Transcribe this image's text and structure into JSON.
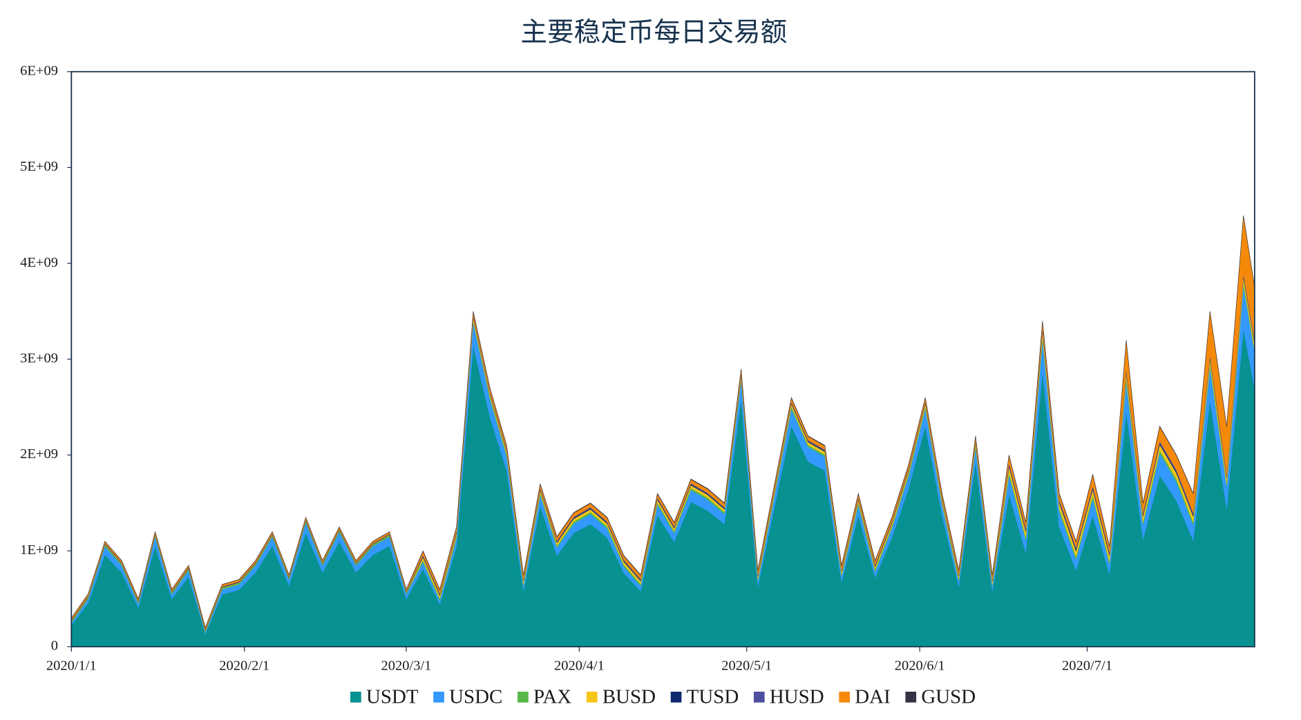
{
  "chart_data": {
    "type": "stacked_area",
    "title": "主要稳定币每日交易额",
    "x": [
      "2020/1/1",
      "2020/1/4",
      "2020/1/7",
      "2020/1/10",
      "2020/1/13",
      "2020/1/16",
      "2020/1/19",
      "2020/1/22",
      "2020/1/25",
      "2020/1/28",
      "2020/1/31",
      "2020/2/3",
      "2020/2/6",
      "2020/2/9",
      "2020/2/12",
      "2020/2/15",
      "2020/2/18",
      "2020/2/21",
      "2020/2/24",
      "2020/2/27",
      "2020/3/1",
      "2020/3/4",
      "2020/3/7",
      "2020/3/10",
      "2020/3/13",
      "2020/3/16",
      "2020/3/19",
      "2020/3/22",
      "2020/3/25",
      "2020/3/28",
      "2020/3/31",
      "2020/4/3",
      "2020/4/6",
      "2020/4/9",
      "2020/4/12",
      "2020/4/15",
      "2020/4/18",
      "2020/4/21",
      "2020/4/24",
      "2020/4/27",
      "2020/4/30",
      "2020/5/3",
      "2020/5/6",
      "2020/5/9",
      "2020/5/12",
      "2020/5/15",
      "2020/5/18",
      "2020/5/21",
      "2020/5/24",
      "2020/5/27",
      "2020/5/30",
      "2020/6/2",
      "2020/6/5",
      "2020/6/8",
      "2020/6/11",
      "2020/6/14",
      "2020/6/17",
      "2020/6/20",
      "2020/6/23",
      "2020/6/26",
      "2020/6/29",
      "2020/7/2",
      "2020/7/5",
      "2020/7/8",
      "2020/7/11",
      "2020/7/14",
      "2020/7/17",
      "2020/7/20",
      "2020/7/23",
      "2020/7/26",
      "2020/7/29",
      "2020/7/31"
    ],
    "xlim": [
      "2020/1/1",
      "2020/7/31"
    ],
    "xticks": [
      "2020/1/1",
      "2020/2/1",
      "2020/3/1",
      "2020/4/1",
      "2020/5/1",
      "2020/6/1",
      "2020/7/1"
    ],
    "ylim": [
      0,
      6000000000
    ],
    "yticks": [
      0,
      {
        "value": 1000000000,
        "label": "1E+09"
      },
      {
        "value": 2000000000,
        "label": "2E+09"
      },
      {
        "value": 3000000000,
        "label": "3E+09"
      },
      {
        "value": 4000000000,
        "label": "4E+09"
      },
      {
        "value": 5000000000,
        "label": "5E+09"
      },
      {
        "value": 6000000000,
        "label": "6E+09"
      }
    ],
    "legend": "bottom",
    "series": [
      {
        "name": "USDT",
        "color": "#079191",
        "values": [
          224000000.0,
          454000000.0,
          960000000.0,
          776000000.0,
          408000000.0,
          1052000000.0,
          500000000.0,
          730000000.0,
          132000000.0,
          546000000.0,
          592000000.0,
          776000000.0,
          1052000000.0,
          638000000.0,
          1190000000.0,
          776000000.0,
          1098000000.0,
          776000000.0,
          960000000.0,
          1052000000.0,
          500000000.0,
          815000000.0,
          443000000.0,
          1047000000.0,
          3140000000.0,
          2396000000.0,
          1838000000.0,
          582000000.0,
          1466000000.0,
          954000000.0,
          1187000000.0,
          1280000000.0,
          1140000000.0,
          768000000.0,
          582000000.0,
          1373000000.0,
          1094000000.0,
          1512000000.0,
          1419000000.0,
          1280000000.0,
          2582000000.0,
          629000000.0,
          1466000000.0,
          2303000000.0,
          1931000000.0,
          1838000000.0,
          675000000.0,
          1373000000.0,
          722000000.0,
          1140000000.0,
          1652000000.0,
          2303000000.0,
          1373000000.0,
          629000000.0,
          1931000000.0,
          582000000.0,
          1590000000.0,
          980000000.0,
          2870000000.0,
          1250000000.0,
          800000000.0,
          1370000000.0,
          755000000.0,
          2450000000.0,
          1120000000.0,
          1790000000.0,
          1520000000.0,
          1110000000.0,
          2570000000.0,
          1440000000.0,
          3320000000.0,
          2695000000.0
        ]
      },
      {
        "name": "USDC",
        "color": "#3399ff",
        "values": [
          24000000.0,
          44000000.0,
          88000000.0,
          72000000.0,
          40000000.0,
          96000000.0,
          48000000.0,
          68000000.0,
          16000000.0,
          52000000.0,
          56000000.0,
          72000000.0,
          96000000.0,
          60000000.0,
          108000000.0,
          72000000.0,
          100000000.0,
          72000000.0,
          88000000.0,
          96000000.0,
          48000000.0,
          70000000.0,
          42000000.0,
          88000000.0,
          245000000.0,
          189000000.0,
          147000000.0,
          53000000.0,
          119000000.0,
          81000000.0,
          98000000.0,
          105000000.0,
          95000000.0,
          67000000.0,
          53000000.0,
          112000000.0,
          91000000.0,
          123000000.0,
          116000000.0,
          105000000.0,
          203000000.0,
          56000000.0,
          119000000.0,
          182000000.0,
          154000000.0,
          147000000.0,
          60000000.0,
          112000000.0,
          63000000.0,
          95000000.0,
          133000000.0,
          182000000.0,
          112000000.0,
          56000000.0,
          154000000.0,
          53000000.0,
          200000000.0,
          130000000.0,
          340000000.0,
          160000000.0,
          110000000.0,
          180000000.0,
          105000000.0,
          320000000.0,
          150000000.0,
          230000000.0,
          200000000.0,
          160000000.0,
          350000000.0,
          230000000.0,
          450000000.0,
          375000000.0
        ]
      },
      {
        "name": "PAX",
        "color": "#55b848",
        "values": [
          15000000.0,
          15000000.0,
          15000000.0,
          15000000.0,
          15000000.0,
          15000000.0,
          15000000.0,
          15000000.0,
          15000000.0,
          15000000.0,
          15000000.0,
          15000000.0,
          15000000.0,
          15000000.0,
          15000000.0,
          15000000.0,
          15000000.0,
          15000000.0,
          15000000.0,
          15000000.0,
          15000000.0,
          20000000.0,
          20000000.0,
          20000000.0,
          20000000.0,
          20000000.0,
          20000000.0,
          20000000.0,
          20000000.0,
          20000000.0,
          20000000.0,
          20000000.0,
          20000000.0,
          20000000.0,
          20000000.0,
          20000000.0,
          20000000.0,
          20000000.0,
          20000000.0,
          20000000.0,
          20000000.0,
          20000000.0,
          20000000.0,
          20000000.0,
          20000000.0,
          20000000.0,
          20000000.0,
          20000000.0,
          20000000.0,
          20000000.0,
          20000000.0,
          20000000.0,
          20000000.0,
          20000000.0,
          20000000.0,
          20000000.0,
          30000000.0,
          30000000.0,
          30000000.0,
          30000000.0,
          30000000.0,
          30000000.0,
          30000000.0,
          30000000.0,
          30000000.0,
          30000000.0,
          30000000.0,
          30000000.0,
          30000000.0,
          30000000.0,
          30000000.0,
          30000000.0
        ]
      },
      {
        "name": "BUSD",
        "color": "#f5c518",
        "values": [
          5000000.0,
          5000000.0,
          5000000.0,
          5000000.0,
          5000000.0,
          5000000.0,
          5000000.0,
          5000000.0,
          5000000.0,
          5000000.0,
          5000000.0,
          5000000.0,
          5000000.0,
          5000000.0,
          5000000.0,
          5000000.0,
          5000000.0,
          5000000.0,
          5000000.0,
          5000000.0,
          5000000.0,
          30000000.0,
          30000000.0,
          30000000.0,
          30000000.0,
          30000000.0,
          30000000.0,
          30000000.0,
          30000000.0,
          30000000.0,
          30000000.0,
          30000000.0,
          30000000.0,
          30000000.0,
          30000000.0,
          30000000.0,
          30000000.0,
          30000000.0,
          30000000.0,
          30000000.0,
          30000000.0,
          30000000.0,
          30000000.0,
          30000000.0,
          30000000.0,
          30000000.0,
          30000000.0,
          30000000.0,
          30000000.0,
          30000000.0,
          30000000.0,
          30000000.0,
          30000000.0,
          30000000.0,
          30000000.0,
          30000000.0,
          60000000.0,
          60000000.0,
          60000000.0,
          60000000.0,
          60000000.0,
          60000000.0,
          60000000.0,
          60000000.0,
          60000000.0,
          60000000.0,
          60000000.0,
          60000000.0,
          60000000.0,
          60000000.0,
          60000000.0,
          60000000.0
        ]
      },
      {
        "name": "TUSD",
        "color": "#0f2a6e",
        "values": [
          5000000.0,
          5000000.0,
          5000000.0,
          5000000.0,
          5000000.0,
          5000000.0,
          5000000.0,
          5000000.0,
          5000000.0,
          5000000.0,
          5000000.0,
          5000000.0,
          5000000.0,
          5000000.0,
          5000000.0,
          5000000.0,
          5000000.0,
          5000000.0,
          5000000.0,
          5000000.0,
          5000000.0,
          10000000.0,
          10000000.0,
          10000000.0,
          10000000.0,
          10000000.0,
          10000000.0,
          10000000.0,
          10000000.0,
          10000000.0,
          10000000.0,
          10000000.0,
          10000000.0,
          10000000.0,
          10000000.0,
          10000000.0,
          10000000.0,
          10000000.0,
          10000000.0,
          10000000.0,
          10000000.0,
          10000000.0,
          10000000.0,
          10000000.0,
          10000000.0,
          10000000.0,
          10000000.0,
          10000000.0,
          10000000.0,
          10000000.0,
          10000000.0,
          10000000.0,
          10000000.0,
          10000000.0,
          10000000.0,
          10000000.0,
          15000000.0,
          15000000.0,
          15000000.0,
          15000000.0,
          15000000.0,
          15000000.0,
          15000000.0,
          15000000.0,
          15000000.0,
          15000000.0,
          15000000.0,
          15000000.0,
          15000000.0,
          15000000.0,
          15000000.0,
          15000000.0
        ]
      },
      {
        "name": "HUSD",
        "color": "#5050a0",
        "values": [
          5000000.0,
          5000000.0,
          5000000.0,
          5000000.0,
          5000000.0,
          5000000.0,
          5000000.0,
          5000000.0,
          5000000.0,
          5000000.0,
          5000000.0,
          5000000.0,
          5000000.0,
          5000000.0,
          5000000.0,
          5000000.0,
          5000000.0,
          5000000.0,
          5000000.0,
          5000000.0,
          5000000.0,
          10000000.0,
          10000000.0,
          10000000.0,
          10000000.0,
          10000000.0,
          10000000.0,
          10000000.0,
          10000000.0,
          10000000.0,
          10000000.0,
          10000000.0,
          10000000.0,
          10000000.0,
          10000000.0,
          10000000.0,
          10000000.0,
          10000000.0,
          10000000.0,
          10000000.0,
          10000000.0,
          10000000.0,
          10000000.0,
          10000000.0,
          10000000.0,
          10000000.0,
          10000000.0,
          10000000.0,
          10000000.0,
          10000000.0,
          10000000.0,
          10000000.0,
          10000000.0,
          10000000.0,
          10000000.0,
          10000000.0,
          20000000.0,
          20000000.0,
          20000000.0,
          20000000.0,
          20000000.0,
          20000000.0,
          20000000.0,
          20000000.0,
          20000000.0,
          20000000.0,
          20000000.0,
          20000000.0,
          20000000.0,
          20000000.0,
          20000000.0,
          20000000.0
        ]
      },
      {
        "name": "DAI",
        "color": "#f58a0a",
        "values": [
          20000000.0,
          20000000.0,
          20000000.0,
          20000000.0,
          20000000.0,
          20000000.0,
          20000000.0,
          20000000.0,
          20000000.0,
          20000000.0,
          20000000.0,
          20000000.0,
          20000000.0,
          20000000.0,
          20000000.0,
          20000000.0,
          20000000.0,
          20000000.0,
          20000000.0,
          20000000.0,
          20000000.0,
          40000000.0,
          40000000.0,
          40000000.0,
          40000000.0,
          40000000.0,
          40000000.0,
          40000000.0,
          40000000.0,
          40000000.0,
          40000000.0,
          40000000.0,
          40000000.0,
          40000000.0,
          40000000.0,
          40000000.0,
          40000000.0,
          40000000.0,
          40000000.0,
          40000000.0,
          40000000.0,
          40000000.0,
          40000000.0,
          40000000.0,
          40000000.0,
          40000000.0,
          40000000.0,
          40000000.0,
          40000000.0,
          40000000.0,
          40000000.0,
          40000000.0,
          40000000.0,
          40000000.0,
          40000000.0,
          40000000.0,
          80000000.0,
          60000000.0,
          60000000.0,
          60000000.0,
          60000000.0,
          120000000.0,
          60000000.0,
          300000000.0,
          100000000.0,
          150000000.0,
          150000000.0,
          200000000.0,
          450000000.0,
          500000000.0,
          600000000.0,
          550000000.0
        ]
      },
      {
        "name": "GUSD",
        "color": "#333344",
        "values": [
          2000000.0,
          2000000.0,
          2000000.0,
          2000000.0,
          2000000.0,
          2000000.0,
          2000000.0,
          2000000.0,
          2000000.0,
          2000000.0,
          2000000.0,
          2000000.0,
          2000000.0,
          2000000.0,
          2000000.0,
          2000000.0,
          2000000.0,
          2000000.0,
          2000000.0,
          2000000.0,
          2000000.0,
          5000000.0,
          5000000.0,
          5000000.0,
          5000000.0,
          5000000.0,
          5000000.0,
          5000000.0,
          5000000.0,
          5000000.0,
          5000000.0,
          5000000.0,
          5000000.0,
          5000000.0,
          5000000.0,
          5000000.0,
          5000000.0,
          5000000.0,
          5000000.0,
          5000000.0,
          5000000.0,
          5000000.0,
          5000000.0,
          5000000.0,
          5000000.0,
          5000000.0,
          5000000.0,
          5000000.0,
          5000000.0,
          5000000.0,
          5000000.0,
          5000000.0,
          5000000.0,
          5000000.0,
          5000000.0,
          5000000.0,
          5000000.0,
          5000000.0,
          5000000.0,
          5000000.0,
          5000000.0,
          5000000.0,
          5000000.0,
          5000000.0,
          5000000.0,
          5000000.0,
          5000000.0,
          5000000.0,
          5000000.0,
          5000000.0,
          5000000.0,
          5000000.0
        ]
      }
    ]
  }
}
